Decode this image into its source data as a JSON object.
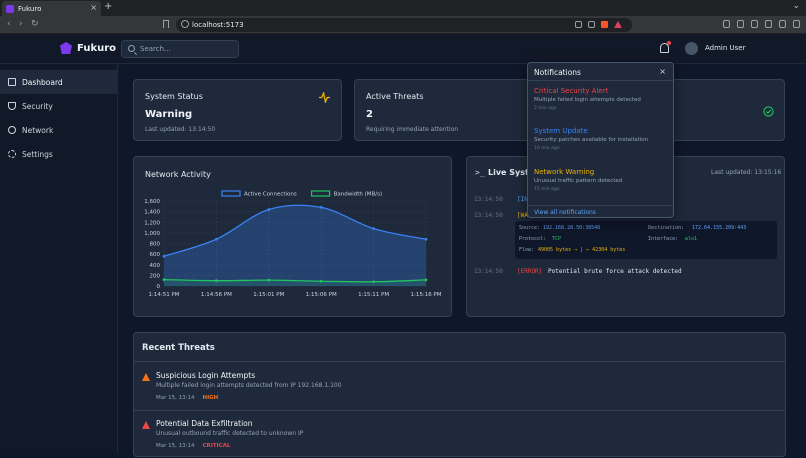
{
  "browser": {
    "tab_title": "Fukuro",
    "url": "localhost:5173"
  },
  "header": {
    "app_name": "Fukuro",
    "search_placeholder": "Search...",
    "user_name": "Admin User"
  },
  "sidebar": {
    "items": [
      {
        "label": "Dashboard",
        "icon": "home-icon",
        "active": true
      },
      {
        "label": "Security",
        "icon": "shield-icon"
      },
      {
        "label": "Network",
        "icon": "network-icon"
      },
      {
        "label": "Settings",
        "icon": "gear-icon"
      }
    ]
  },
  "status_card": {
    "title": "System Status",
    "value": "Warning",
    "updated": "Last updated: 13:14:50"
  },
  "threats_card": {
    "title": "Active Threats",
    "value": "2",
    "subtitle": "Requiring immediate attention"
  },
  "network_activity": {
    "title": "Network Activity"
  },
  "chart_data": {
    "type": "line",
    "x": [
      "1:14:51 PM",
      "1:14:56 PM",
      "1:15:01 PM",
      "1:15:06 PM",
      "1:15:11 PM",
      "1:15:16 PM"
    ],
    "series": [
      {
        "name": "Active Connections",
        "values": [
          560,
          880,
          1440,
          1480,
          1080,
          880
        ],
        "color": "#3b82f6"
      },
      {
        "name": "Bandwidth (MB/s)",
        "values": [
          120,
          100,
          110,
          90,
          80,
          115
        ],
        "color": "#22c55e"
      }
    ],
    "ylim": [
      0,
      1600
    ],
    "yticks": [
      "0",
      "200",
      "400",
      "600",
      "800",
      "1,000",
      "1,200",
      "1,400",
      "1,600"
    ],
    "legend": "top",
    "grid": true
  },
  "live_system": {
    "title": "Live Syste",
    "updated": "Last updated: 13:15:16",
    "logs": [
      {
        "time": "13:14:50",
        "tag": "[IN",
        "msg": ""
      },
      {
        "time": "13:14:50",
        "tag": "[WA",
        "msg": ""
      },
      {
        "time": "13:14:50",
        "tag": "[ERROR]",
        "msg": "Potential brute force attack detected"
      }
    ],
    "detail": {
      "source_label": "Source:",
      "source": "192.168.28.50:38548",
      "dest_label": "Destination:",
      "dest": "172.64.155.209:443",
      "protocol_label": "Protocol:",
      "protocol": "TCP",
      "interface_label": "Interface:",
      "interface": "wlo1",
      "flow_label": "Flow:",
      "flow": "49005 bytes → | ← 42304 bytes"
    }
  },
  "recent_threats": {
    "title": "Recent Threats",
    "items": [
      {
        "title": "Suspicious Login Attempts",
        "desc": "Multiple failed login attempts detected from IP 192.168.1.100",
        "time": "Mar 15, 13:14",
        "severity": "HIGH",
        "color": "#f97316"
      },
      {
        "title": "Potential Data Exfiltration",
        "desc": "Unusual outbound traffic detected to unknown IP",
        "time": "Mar 15, 13:14",
        "severity": "CRITICAL",
        "color": "#ef4444"
      }
    ]
  },
  "notifications": {
    "title": "Notifications",
    "items": [
      {
        "title": "Critical Security Alert",
        "desc": "Multiple failed login attempts detected",
        "time": "2 min ago",
        "color": "#ef4444"
      },
      {
        "title": "System Update",
        "desc": "Security patches available for installation",
        "time": "10 min ago",
        "color": "#3b82f6"
      },
      {
        "title": "Network Warning",
        "desc": "Unusual traffic pattern detected",
        "time": "15 min ago",
        "color": "#eab308"
      }
    ],
    "footer": "View all notifications"
  }
}
